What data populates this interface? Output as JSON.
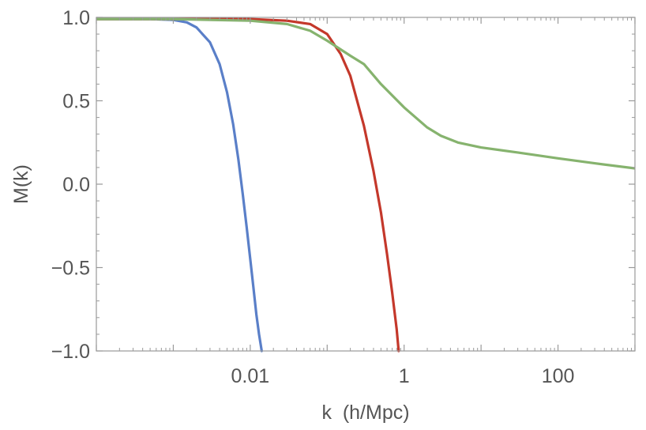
{
  "chart_data": {
    "type": "line",
    "xlabel": "k  (h/Mpc)",
    "ylabel": "M(k)",
    "xscale": "log",
    "xlim": [
      0.0001,
      1000
    ],
    "ylim": [
      -1.0,
      1.0
    ],
    "x_ticks": [
      {
        "value": 0.01,
        "label": "0.01"
      },
      {
        "value": 1,
        "label": "1"
      },
      {
        "value": 100,
        "label": "100"
      }
    ],
    "y_ticks": [
      {
        "value": 1.0,
        "label": "1.0"
      },
      {
        "value": 0.5,
        "label": "0.5"
      },
      {
        "value": 0.0,
        "label": "0.0"
      },
      {
        "value": -0.5,
        "label": "−0.5"
      },
      {
        "value": -1.0,
        "label": "−1.0"
      }
    ],
    "grid": false,
    "frame": true,
    "series": [
      {
        "color": "#5a7fc8",
        "x": [
          0.0001,
          0.0005,
          0.001,
          0.0015,
          0.002,
          0.003,
          0.004,
          0.005,
          0.006,
          0.007,
          0.008,
          0.009,
          0.01,
          0.011,
          0.012,
          0.013,
          0.0141
        ],
        "y": [
          0.99,
          0.99,
          0.985,
          0.97,
          0.94,
          0.85,
          0.72,
          0.55,
          0.36,
          0.15,
          -0.06,
          -0.26,
          -0.45,
          -0.62,
          -0.78,
          -0.9,
          -1.0
        ]
      },
      {
        "color": "#c4382b",
        "x": [
          0.0001,
          0.01,
          0.03,
          0.06,
          0.1,
          0.15,
          0.2,
          0.3,
          0.4,
          0.5,
          0.6,
          0.7,
          0.8,
          0.85
        ],
        "y": [
          0.99,
          0.99,
          0.98,
          0.96,
          0.9,
          0.78,
          0.65,
          0.35,
          0.08,
          -0.17,
          -0.42,
          -0.65,
          -0.87,
          -1.0
        ]
      },
      {
        "color": "#86b36e",
        "x": [
          0.0001,
          0.001,
          0.01,
          0.03,
          0.06,
          0.1,
          0.2,
          0.3,
          0.5,
          1,
          2,
          3,
          5,
          10,
          30,
          100,
          300,
          1000
        ],
        "y": [
          0.99,
          0.99,
          0.98,
          0.96,
          0.92,
          0.86,
          0.77,
          0.72,
          0.6,
          0.46,
          0.34,
          0.29,
          0.25,
          0.22,
          0.19,
          0.155,
          0.125,
          0.095
        ]
      }
    ]
  }
}
